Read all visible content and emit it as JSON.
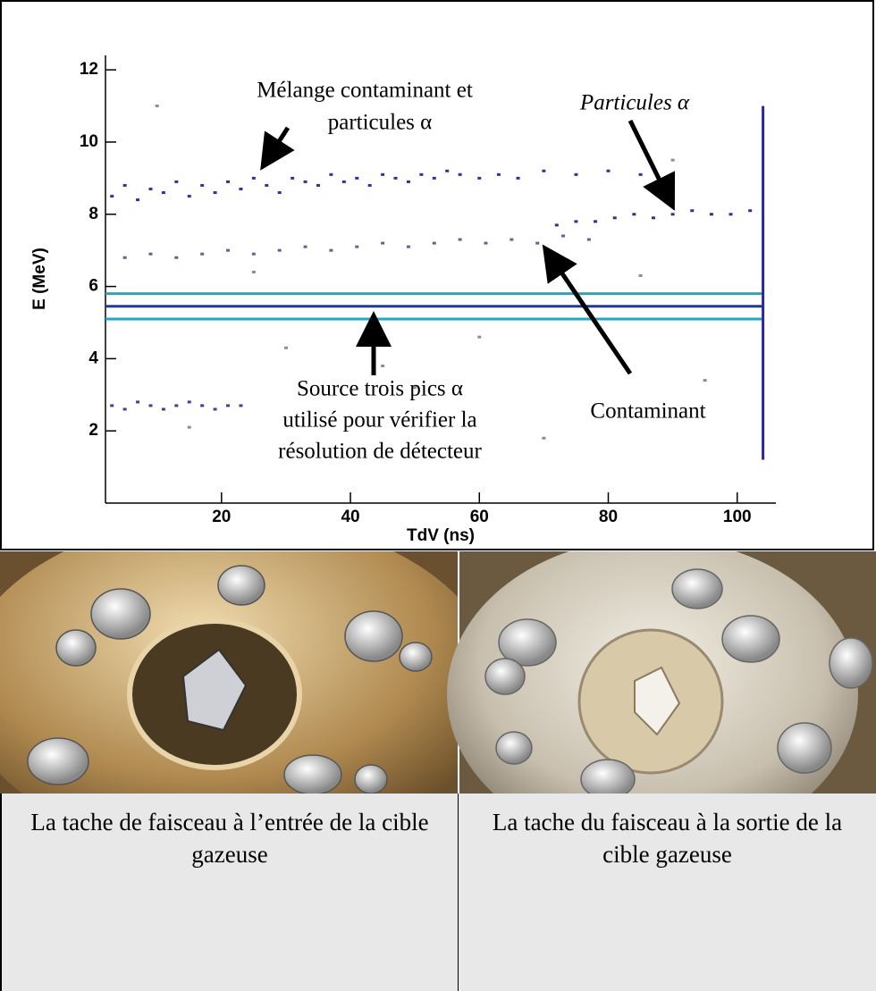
{
  "chart_data": {
    "type": "scatter",
    "xlabel": "TdV (ns)",
    "ylabel": "E (MeV)",
    "xlim": [
      2,
      106
    ],
    "ylim": [
      0,
      12.4
    ],
    "xticks": [
      20,
      40,
      60,
      80,
      100
    ],
    "yticks": [
      2,
      4,
      6,
      8,
      10,
      12
    ],
    "grid": false,
    "series": [
      {
        "color": "#3b2f8f",
        "style": "points",
        "x": [
          3,
          5,
          7,
          9,
          11,
          13,
          15,
          17,
          19,
          21,
          23,
          25,
          27,
          29,
          31,
          33,
          35,
          37,
          39,
          41,
          43,
          45,
          47,
          49,
          51,
          53,
          55,
          57,
          60,
          63,
          66,
          70,
          75,
          80,
          85
        ],
        "values": [
          8.5,
          8.8,
          8.4,
          8.7,
          8.6,
          8.9,
          8.5,
          8.8,
          8.6,
          8.9,
          8.7,
          9.0,
          8.8,
          8.6,
          9.0,
          8.9,
          8.8,
          9.1,
          8.9,
          9.0,
          8.8,
          9.1,
          9.0,
          8.9,
          9.1,
          9.0,
          9.2,
          9.1,
          9.0,
          9.1,
          9.0,
          9.2,
          9.1,
          9.2,
          9.1
        ]
      },
      {
        "color": "#6a5aa8",
        "style": "points",
        "x": [
          5,
          9,
          13,
          17,
          21,
          25,
          29,
          33,
          37,
          41,
          45,
          49,
          53,
          57,
          61,
          65,
          69,
          73,
          77
        ],
        "values": [
          6.8,
          6.9,
          6.8,
          6.9,
          7.0,
          6.9,
          7.0,
          7.1,
          7.0,
          7.1,
          7.2,
          7.1,
          7.2,
          7.3,
          7.2,
          7.3,
          7.2,
          7.4,
          7.3
        ]
      },
      {
        "color": "#3c2d8c",
        "style": "points",
        "x": [
          72,
          75,
          78,
          81,
          84,
          87,
          90,
          93,
          96,
          99,
          102
        ],
        "values": [
          7.7,
          7.8,
          7.8,
          7.9,
          8.0,
          7.9,
          8.0,
          8.1,
          8.0,
          8.0,
          8.1
        ]
      },
      {
        "color": "#4a3c96",
        "style": "points",
        "x": [
          3,
          5,
          7,
          9,
          11,
          13,
          15,
          17,
          19,
          21,
          23
        ],
        "values": [
          2.7,
          2.6,
          2.8,
          2.7,
          2.6,
          2.7,
          2.8,
          2.7,
          2.6,
          2.7,
          2.7
        ]
      },
      {
        "color": "#8a8aaa",
        "style": "points",
        "x": [
          10,
          30,
          50,
          70,
          90,
          15,
          45,
          85,
          60,
          25,
          95
        ],
        "values": [
          11,
          4.3,
          3.2,
          1.8,
          9.5,
          2.1,
          3.8,
          6.3,
          4.6,
          6.4,
          3.4
        ]
      },
      {
        "color": "#22a8c0",
        "style": "line",
        "x": [
          2,
          104
        ],
        "values": [
          5.1,
          5.1
        ]
      },
      {
        "color": "#1a3aa0",
        "style": "line",
        "x": [
          2,
          104
        ],
        "values": [
          5.45,
          5.45
        ]
      },
      {
        "color": "#22a8c0",
        "style": "line",
        "x": [
          2,
          104
        ],
        "values": [
          5.8,
          5.8
        ]
      },
      {
        "color": "#2a2a90",
        "style": "line",
        "x": [
          104,
          104
        ],
        "values": [
          1.2,
          11
        ]
      }
    ],
    "annotations": [
      [
        "Mélange contaminant et",
        "particules α"
      ],
      [
        "Particules α"
      ],
      [
        "Source trois pics α",
        "utilisé pour vérifier la",
        "résolution de détecteur"
      ],
      [
        "Contaminant"
      ]
    ]
  },
  "captions": [
    "La tache de faisceau à l’entrée de la cible gazeuse",
    "La tache du faisceau à la sortie de la cible gazeuse"
  ]
}
